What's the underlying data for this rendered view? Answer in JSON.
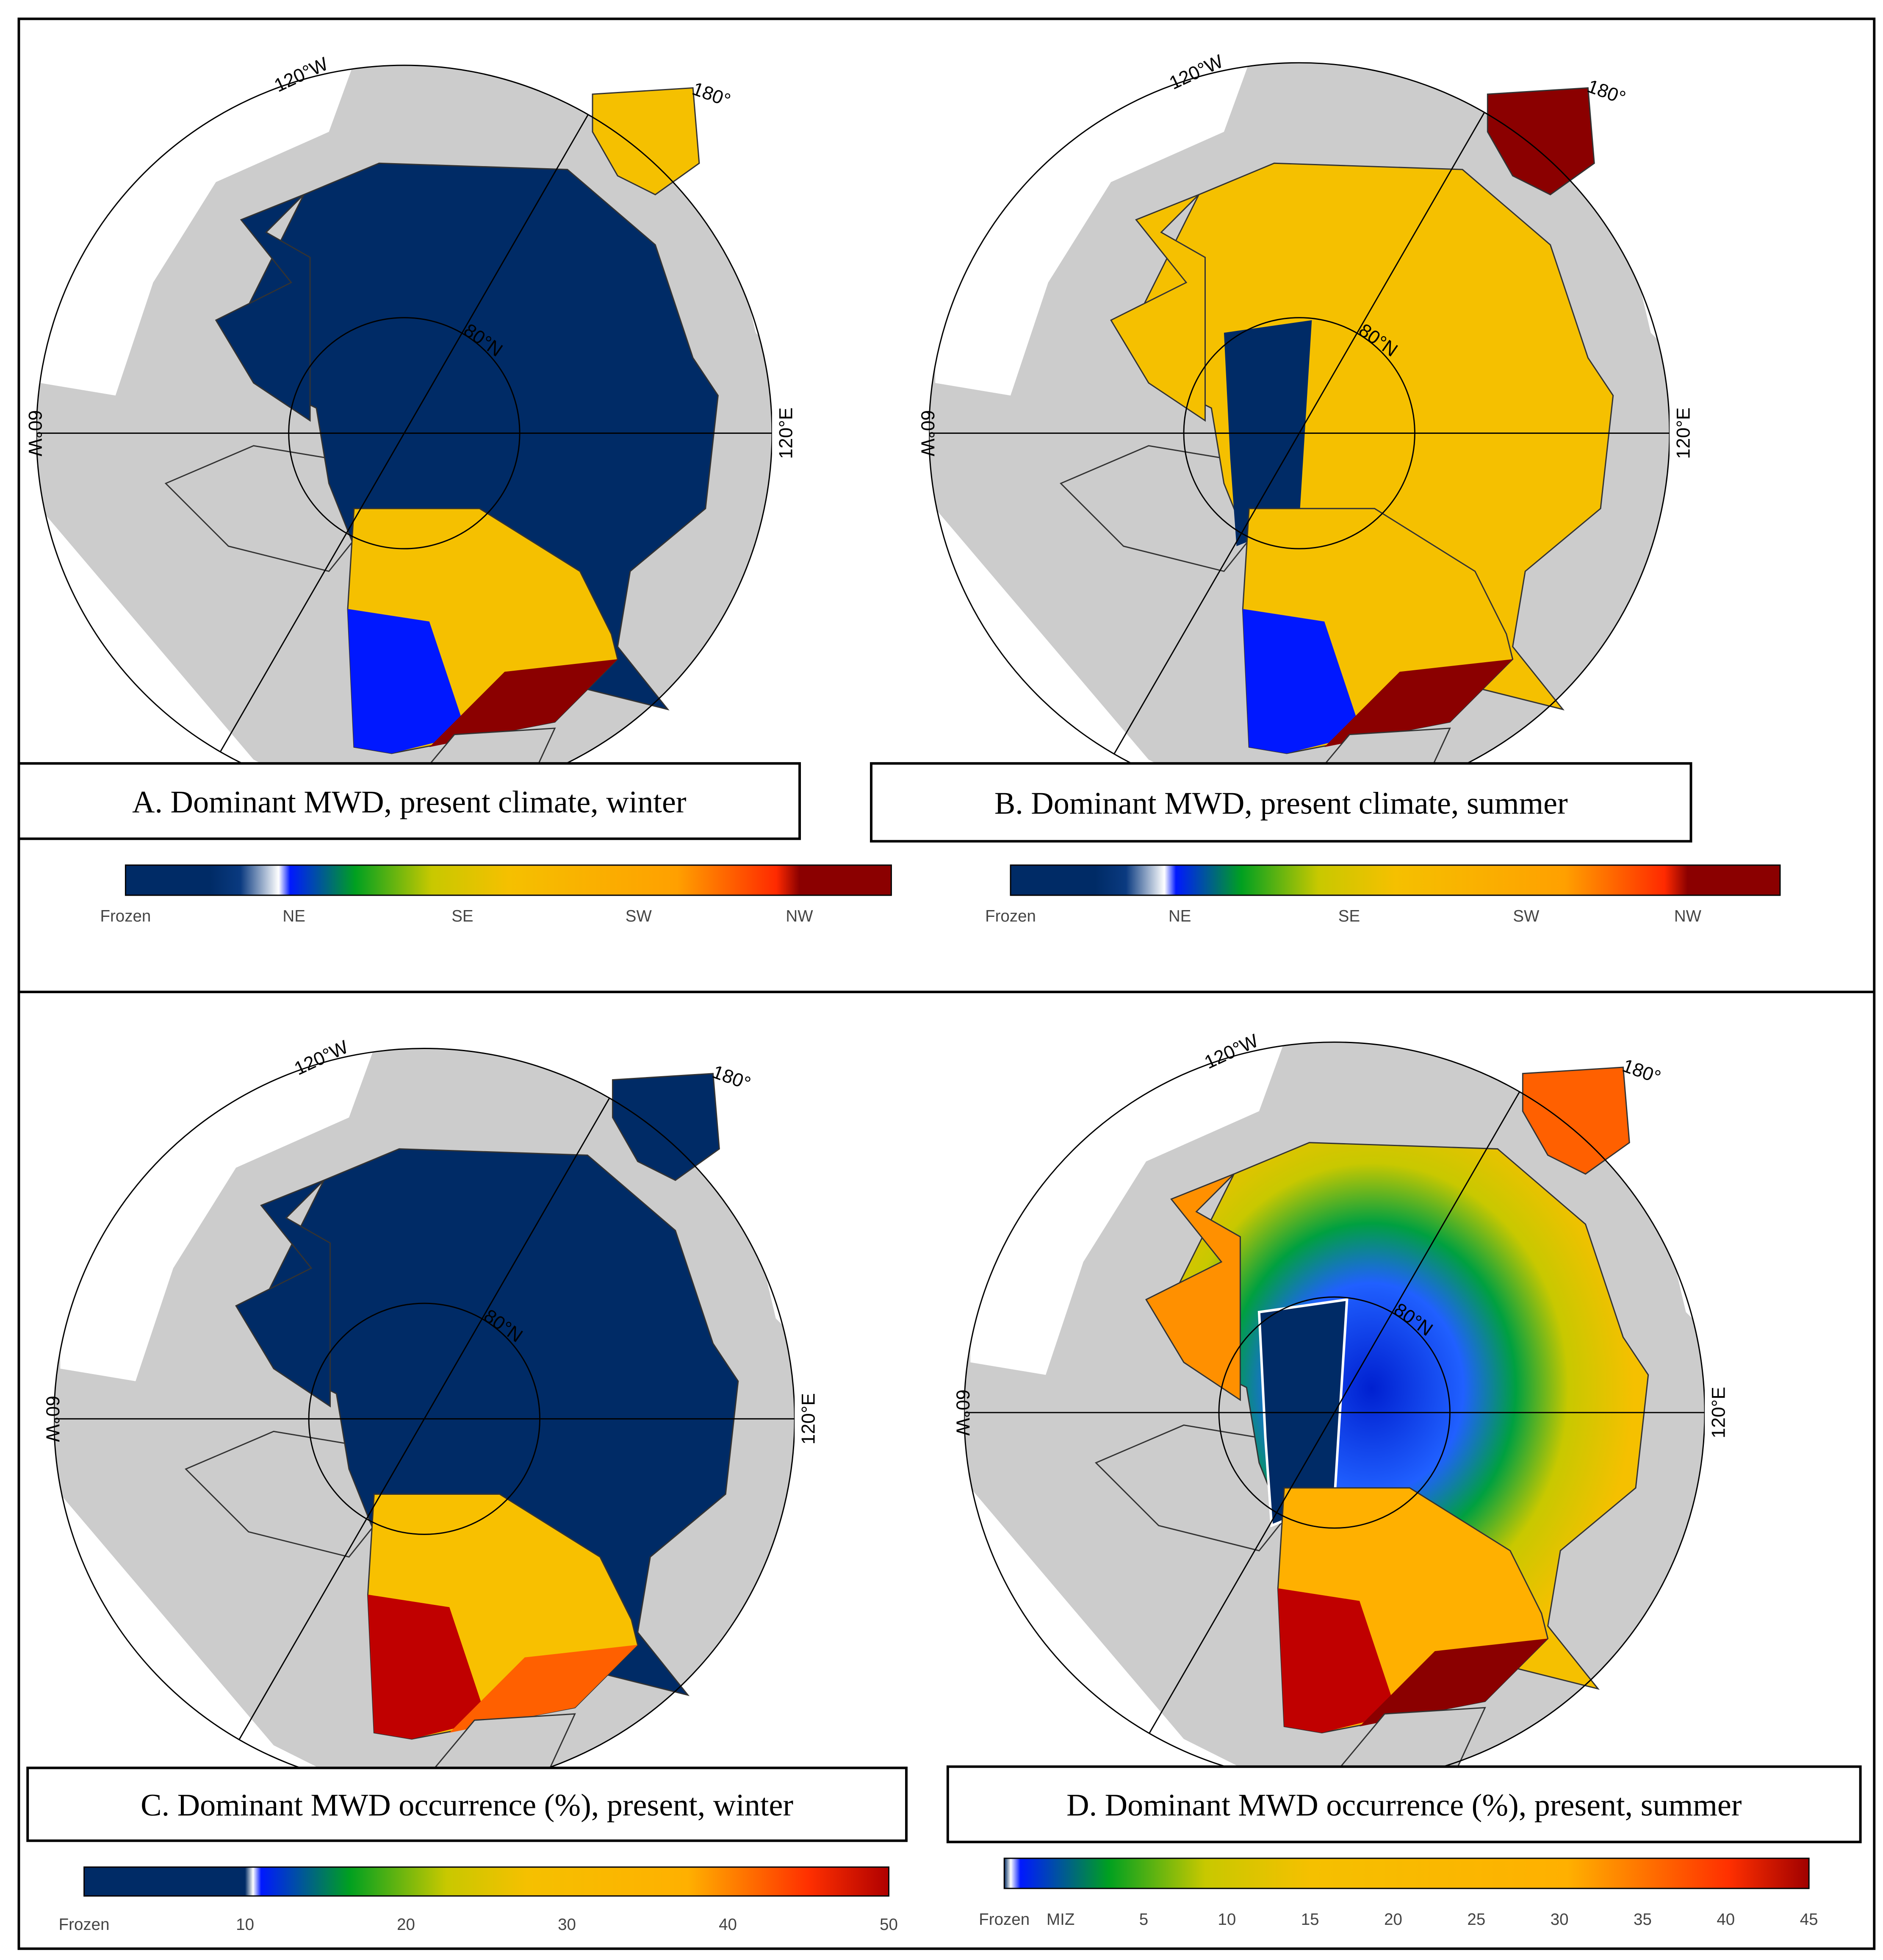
{
  "panels": [
    {
      "label": "A. Dominant MWD, present climate, winter",
      "map_labels": {
        "meridian_top_left": "120°W",
        "meridian_top_right": "180°",
        "meridian_left": "60°W",
        "meridian_right": "120°E",
        "parallel": "80°N"
      },
      "colorbar": {
        "ticks": [
          "Frozen",
          "NE",
          "SE",
          "SW",
          "NW"
        ]
      }
    },
    {
      "label": "B. Dominant MWD, present climate, summer",
      "map_labels": {
        "meridian_top_left": "120°W",
        "meridian_top_right": "180°",
        "meridian_left": "60°W",
        "meridian_right": "120°E",
        "parallel": "80°N"
      },
      "colorbar": {
        "ticks": [
          "Frozen",
          "NE",
          "SE",
          "SW",
          "NW"
        ]
      }
    },
    {
      "label": "C. Dominant MWD occurrence (%), present, winter",
      "map_labels": {
        "meridian_top_left": "120°W",
        "meridian_top_right": "180°",
        "meridian_left": "60°W",
        "meridian_right": "120°E",
        "parallel": "80°N"
      },
      "colorbar": {
        "ticks": [
          "Frozen",
          10,
          20,
          30,
          40,
          50
        ]
      }
    },
    {
      "label": "D. Dominant MWD occurrence (%), present, summer",
      "map_labels": {
        "meridian_top_left": "120°W",
        "meridian_top_right": "180°",
        "meridian_left": "60°W",
        "meridian_right": "120°E",
        "parallel": "80°N"
      },
      "colorbar": {
        "ticks": [
          "Frozen",
          "MIZ",
          5,
          10,
          15,
          20,
          25,
          30,
          35,
          40,
          45
        ]
      }
    }
  ]
}
